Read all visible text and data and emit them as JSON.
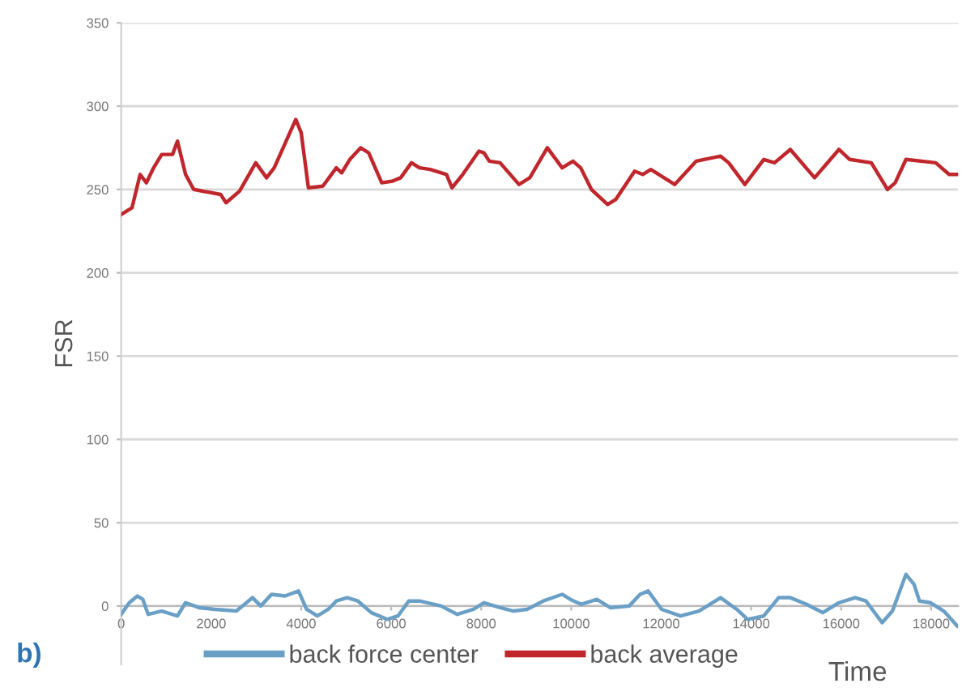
{
  "chart_data": {
    "type": "line",
    "xlabel": "Time",
    "ylabel": "FSR",
    "annotations": [
      "b)"
    ],
    "xlim": [
      0,
      18600
    ],
    "ylim": [
      -35,
      350
    ],
    "xticks": [
      0,
      2000,
      4000,
      6000,
      8000,
      10000,
      12000,
      14000,
      16000,
      18000
    ],
    "yticks": [
      0,
      50,
      100,
      150,
      200,
      250,
      300,
      350
    ],
    "grid": "y",
    "legend": "bottom",
    "marker": "none",
    "line_style": "solid",
    "series": [
      {
        "name": "back force center",
        "color": "#6a9fc6",
        "x": [
          0,
          180,
          360,
          480,
          600,
          900,
          1250,
          1430,
          1730,
          2080,
          2560,
          2920,
          3100,
          3340,
          3640,
          3940,
          4120,
          4360,
          4600,
          4780,
          5020,
          5260,
          5560,
          5910,
          6150,
          6390,
          6630,
          7110,
          7470,
          7830,
          8060,
          8420,
          8720,
          9020,
          9380,
          9800,
          9980,
          10220,
          10570,
          10870,
          11290,
          11530,
          11710,
          12010,
          12430,
          12840,
          13320,
          13680,
          13920,
          14280,
          14610,
          14870,
          15230,
          15590,
          15950,
          16310,
          16550,
          16910,
          17140,
          17440,
          17620,
          17740,
          17980,
          18280,
          18580
        ],
        "values": [
          -5,
          2,
          6,
          4,
          -5,
          -3,
          -6,
          2,
          -1,
          -2,
          -3,
          5,
          0,
          7,
          6,
          9,
          -2,
          -6,
          -2,
          3,
          5,
          3,
          -4,
          -8,
          -6,
          3,
          3,
          0,
          -5,
          -2,
          2,
          -1,
          -3,
          -2,
          3,
          7,
          4,
          1,
          4,
          -1,
          0,
          7,
          9,
          -2,
          -6,
          -3,
          5,
          -2,
          -8,
          -6,
          5,
          5,
          1,
          -4,
          2,
          5,
          3,
          -10,
          -3,
          19,
          13,
          3,
          2,
          -3,
          -12
        ]
      },
      {
        "name": "back average",
        "color": "#c0272d",
        "x": [
          0,
          240,
          420,
          560,
          720,
          900,
          1140,
          1250,
          1430,
          1610,
          2210,
          2330,
          2630,
          2990,
          3230,
          3400,
          3880,
          4000,
          4160,
          4480,
          4780,
          4900,
          5080,
          5320,
          5500,
          5790,
          6030,
          6210,
          6450,
          6630,
          6870,
          7230,
          7350,
          7590,
          7950,
          8060,
          8180,
          8420,
          8840,
          9080,
          9470,
          9800,
          10040,
          10210,
          10450,
          10810,
          10990,
          11410,
          11590,
          11770,
          12300,
          12780,
          13320,
          13500,
          13860,
          14280,
          14520,
          14870,
          15410,
          15950,
          16190,
          16670,
          17030,
          17200,
          17440,
          18100,
          18400,
          18580
        ],
        "values": [
          235,
          239,
          259,
          254,
          263,
          271,
          271,
          279,
          259,
          250,
          247,
          242,
          249,
          266,
          257,
          263,
          292,
          284,
          251,
          252,
          263,
          260,
          268,
          275,
          272,
          254,
          255,
          257,
          266,
          263,
          262,
          259,
          251,
          259,
          273,
          272,
          267,
          266,
          253,
          257,
          275,
          263,
          267,
          263,
          250,
          241,
          244,
          261,
          259,
          262,
          253,
          267,
          270,
          266,
          253,
          268,
          266,
          274,
          257,
          274,
          268,
          266,
          250,
          254,
          268,
          266,
          259,
          259
        ]
      }
    ]
  }
}
